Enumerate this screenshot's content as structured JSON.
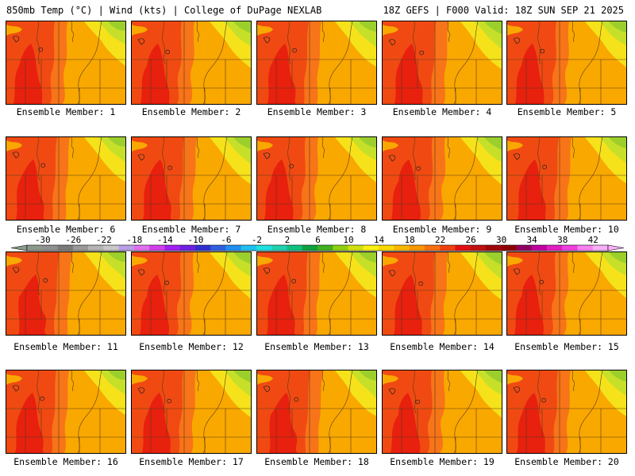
{
  "header": {
    "left": "850mb Temp (°C) | Wind (kts) | College of DuPage NEXLAB",
    "right": "18Z GEFS | F000 Valid: 18Z SUN SEP 21 2025"
  },
  "panels": [
    {
      "member": 1,
      "label": "Ensemble Member: 1"
    },
    {
      "member": 2,
      "label": "Ensemble Member: 2"
    },
    {
      "member": 3,
      "label": "Ensemble Member: 3"
    },
    {
      "member": 4,
      "label": "Ensemble Member: 4"
    },
    {
      "member": 5,
      "label": "Ensemble Member: 5"
    },
    {
      "member": 6,
      "label": "Ensemble Member: 6"
    },
    {
      "member": 7,
      "label": "Ensemble Member: 7"
    },
    {
      "member": 8,
      "label": "Ensemble Member: 8"
    },
    {
      "member": 9,
      "label": "Ensemble Member: 9"
    },
    {
      "member": 10,
      "label": "Ensemble Member: 10"
    },
    {
      "member": 11,
      "label": "Ensemble Member: 11"
    },
    {
      "member": 12,
      "label": "Ensemble Member: 12"
    },
    {
      "member": 13,
      "label": "Ensemble Member: 13"
    },
    {
      "member": 14,
      "label": "Ensemble Member: 14"
    },
    {
      "member": 15,
      "label": "Ensemble Member: 15"
    },
    {
      "member": 16,
      "label": "Ensemble Member: 16"
    },
    {
      "member": 17,
      "label": "Ensemble Member: 17"
    },
    {
      "member": 18,
      "label": "Ensemble Member: 18"
    },
    {
      "member": 19,
      "label": "Ensemble Member: 19"
    },
    {
      "member": 20,
      "label": "Ensemble Member: 20"
    }
  ],
  "colorbar": {
    "labels": [
      "-30",
      "-26",
      "-22",
      "-18",
      "-14",
      "-10",
      "-6",
      "-2",
      "2",
      "6",
      "10",
      "14",
      "18",
      "22",
      "26",
      "30",
      "34",
      "38",
      "42"
    ],
    "colors": [
      "#8c9a8c",
      "#909090",
      "#7a7a7a",
      "#999999",
      "#b4b4b4",
      "#c8c8c8",
      "#b9a0e6",
      "#e070f0",
      "#d040e8",
      "#a020f0",
      "#7020e0",
      "#3030d0",
      "#3060e0",
      "#2090f0",
      "#20c0f0",
      "#20e0e0",
      "#20d0b0",
      "#10c080",
      "#10a040",
      "#40b020",
      "#90d010",
      "#d0e010",
      "#f8f010",
      "#f8d800",
      "#f8b800",
      "#f89800",
      "#f87010",
      "#f04010",
      "#e01010",
      "#c01010",
      "#a00808",
      "#900000",
      "#900060",
      "#c000a0",
      "#e020c0",
      "#f040e0",
      "#f880f0",
      "#f8b0f8"
    ],
    "map_colors": {
      "deep_red": "#e8200e",
      "red": "#f04a12",
      "orange_red": "#f87418",
      "orange": "#f9a800",
      "yellow": "#f5e21a",
      "yellow_green": "#c6e02a",
      "green": "#9ccf2c"
    }
  }
}
